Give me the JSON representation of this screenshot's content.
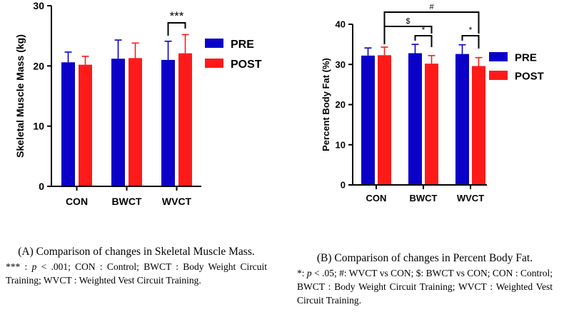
{
  "chart_data": [
    {
      "id": "A",
      "type": "bar",
      "ylabel": "Skeletal Muscle Mass (kg)",
      "ylim": [
        0,
        30
      ],
      "yticks": [
        "0",
        "10",
        "20",
        "30"
      ],
      "categories": [
        "CON",
        "BWCT",
        "WVCT"
      ],
      "series": [
        {
          "name": "PRE",
          "color": "#0a00c8",
          "values": [
            20.6,
            21.2,
            21.0
          ],
          "errors": [
            1.7,
            3.1,
            3.1
          ]
        },
        {
          "name": "POST",
          "color": "#ff1a1a",
          "values": [
            20.2,
            21.3,
            22.1
          ],
          "errors": [
            1.4,
            2.5,
            3.1
          ]
        }
      ],
      "legend": "right",
      "annotations": [
        {
          "label": "***",
          "from": [
            2,
            0
          ],
          "to": [
            2,
            1
          ]
        }
      ]
    },
    {
      "id": "B",
      "type": "bar",
      "ylabel": "Percent Body Fat (%)",
      "ylim": [
        0,
        40
      ],
      "yticks": [
        "0",
        "10",
        "20",
        "30",
        "40"
      ],
      "categories": [
        "CON",
        "BWCT",
        "WVCT"
      ],
      "series": [
        {
          "name": "PRE",
          "color": "#0a00c8",
          "values": [
            32.2,
            32.8,
            32.6
          ],
          "errors": [
            1.9,
            2.2,
            2.3
          ]
        },
        {
          "name": "POST",
          "color": "#ff1a1a",
          "values": [
            32.3,
            30.2,
            29.6
          ],
          "errors": [
            2.0,
            2.0,
            2.1
          ]
        }
      ],
      "legend": "right",
      "annotations": [
        {
          "label": "*",
          "from": [
            1,
            0
          ],
          "to": [
            1,
            1
          ]
        },
        {
          "label": "*",
          "from": [
            2,
            0
          ],
          "to": [
            2,
            1
          ]
        },
        {
          "label": "$",
          "from": [
            0,
            1
          ],
          "to": [
            1,
            1
          ]
        },
        {
          "label": "#",
          "from": [
            0,
            1
          ],
          "to": [
            2,
            1
          ]
        }
      ]
    }
  ],
  "captions": {
    "a": {
      "title": "(A) Comparison of changes in Skeletal Muscle Mass.",
      "note_mark": "***",
      "note_sep": " : ",
      "note_p": "p",
      "note_rest": " < .001; CON : Control; BWCT : Body Weight Circuit Training; WVCT : Weighted Vest Circuit Training."
    },
    "b": {
      "title": "(B) Comparison of changes in Percent Body Fat.",
      "note_mark": "*",
      "note_sep": ": ",
      "note_p": "p",
      "note_rest": " < .05; #: WVCT vs CON; $: BWCT vs CON; CON : Control; BWCT : Body Weight Circuit Training; WVCT : Weighted Vest Circuit Training."
    }
  }
}
